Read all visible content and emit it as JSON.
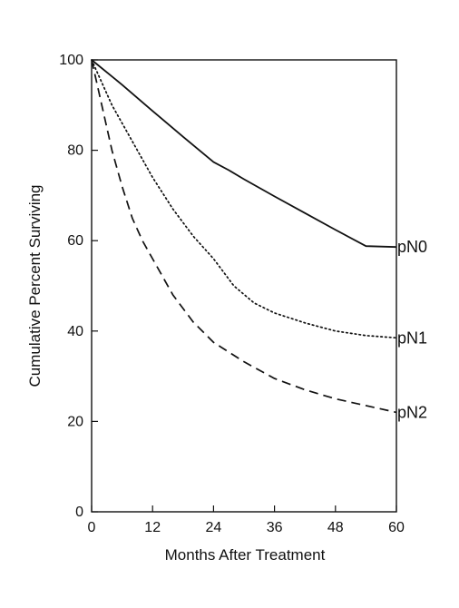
{
  "chart_data": {
    "type": "line",
    "xlabel": "Months After Treatment",
    "ylabel": "Cumulative Percent Surviving",
    "xlim": [
      0,
      60
    ],
    "ylim": [
      0,
      100
    ],
    "xticks": [
      0,
      12,
      24,
      36,
      48,
      60
    ],
    "yticks": [
      0,
      20,
      40,
      60,
      80,
      100
    ],
    "grid": false,
    "legend": "end-of-line labels",
    "series": [
      {
        "name": "pN0",
        "style": "solid",
        "color": "#111111",
        "x": [
          0,
          6,
          12,
          18,
          24,
          27,
          30,
          36,
          42,
          48,
          54,
          60
        ],
        "y": [
          100,
          94.5,
          88.7,
          83,
          77.4,
          75.6,
          73.6,
          69.8,
          66.1,
          62.4,
          58.8,
          58.6
        ]
      },
      {
        "name": "pN1",
        "style": "dotted",
        "color": "#111111",
        "x": [
          0,
          4,
          8,
          12,
          16,
          20,
          24,
          28,
          32,
          36,
          42,
          48,
          54,
          60
        ],
        "y": [
          100,
          90,
          82,
          74,
          67,
          61,
          56,
          50,
          46.2,
          44,
          41.8,
          40,
          39,
          38.5
        ]
      },
      {
        "name": "pN2",
        "style": "dashed",
        "color": "#111111",
        "x": [
          0,
          2,
          4,
          6,
          8,
          10,
          12,
          16,
          20,
          24,
          30,
          36,
          42,
          48,
          54,
          60
        ],
        "y": [
          100,
          90,
          80,
          72,
          65,
          60,
          56,
          48,
          42,
          37.5,
          33.2,
          29.5,
          27,
          25,
          23.5,
          22
        ]
      }
    ]
  }
}
